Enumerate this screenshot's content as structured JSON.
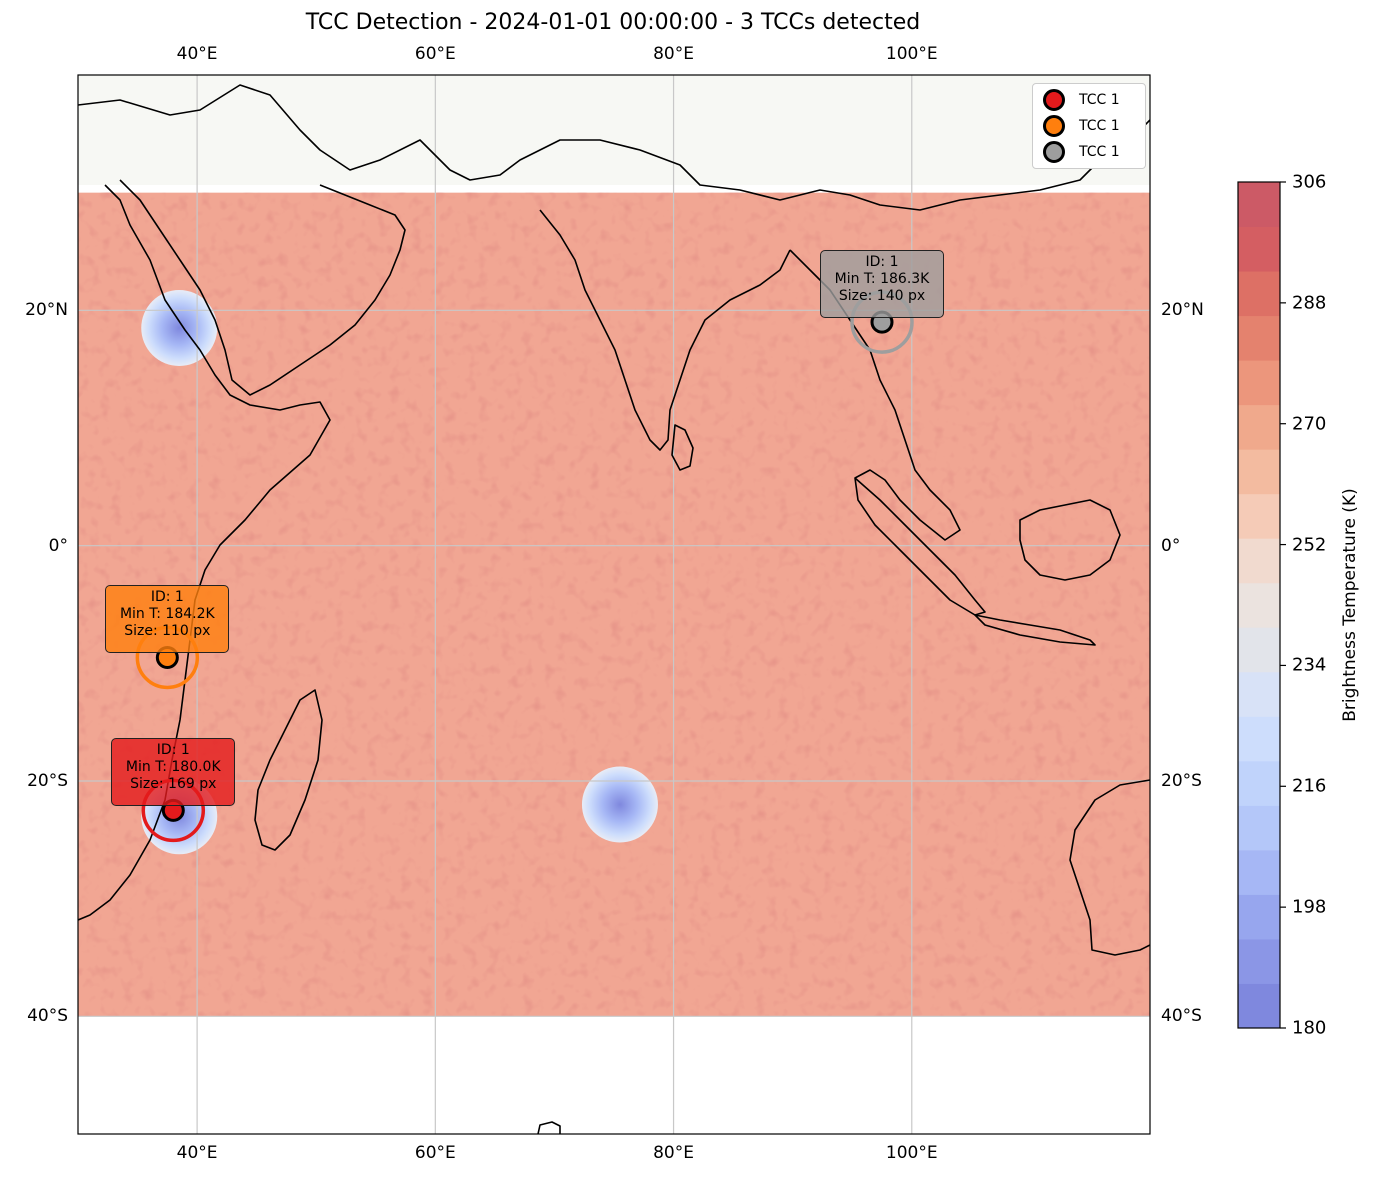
{
  "title": "TCC Detection - 2024-01-01 00:00:00 - 3 TCCs detected",
  "map": {
    "lon_range": [
      30,
      120
    ],
    "lat_range": [
      -50,
      40
    ],
    "data_lat_range": [
      -40,
      30
    ],
    "lon_ticks": [
      {
        "value": 40,
        "label": "40°E"
      },
      {
        "value": 60,
        "label": "60°E"
      },
      {
        "value": 80,
        "label": "80°E"
      },
      {
        "value": 100,
        "label": "100°E"
      }
    ],
    "lat_ticks": [
      {
        "value": 20,
        "label": "20°N"
      },
      {
        "value": 0,
        "label": "0°"
      },
      {
        "value": -20,
        "label": "20°S"
      },
      {
        "value": -40,
        "label": "40°S"
      }
    ],
    "ocean_color": "#f7f8f4",
    "field_color": "#f1a693"
  },
  "colorbar": {
    "label": "Brightness Temperature (K)",
    "min": 180,
    "max": 306,
    "ticks": [
      "306",
      "288",
      "270",
      "252",
      "234",
      "216",
      "198",
      "180"
    ],
    "colors": [
      "#7f88de",
      "#8b96e6",
      "#97a6ee",
      "#a6b7f5",
      "#b4c7f9",
      "#c0d3fb",
      "#cdddfc",
      "#d8e2f7",
      "#e2e4ea",
      "#ebe3df",
      "#f1dacf",
      "#f5cbb7",
      "#f3bba0",
      "#f0a98c",
      "#ec967c",
      "#e4826e",
      "#dd7065",
      "#d45e62",
      "#cc5a66"
    ]
  },
  "legend": {
    "items": [
      {
        "label": "TCC 1",
        "color": "#e31a1c"
      },
      {
        "label": "TCC 1",
        "color": "#ff7f0e"
      },
      {
        "label": "TCC 1",
        "color": "#9e9e9e"
      }
    ]
  },
  "tccs": [
    {
      "id_text": "ID: 1",
      "min_t_text": "Min T: 180.0K",
      "size_text": "Size: 169 px",
      "lon": 38,
      "lat": -22.5,
      "color": "#e31a1c"
    },
    {
      "id_text": "ID: 1",
      "min_t_text": "Min T: 184.2K",
      "size_text": "Size: 110 px",
      "lon": 37.5,
      "lat": -9.5,
      "color": "#ff7f0e"
    },
    {
      "id_text": "ID: 1",
      "min_t_text": "Min T: 186.3K",
      "size_text": "Size: 140 px",
      "lon": 97.5,
      "lat": 19,
      "color": "#9e9e9e"
    }
  ],
  "cold_blobs": [
    {
      "lon": 38.5,
      "lat": 18.5
    },
    {
      "lon": 38.5,
      "lat": -23
    },
    {
      "lon": 75.5,
      "lat": -22
    }
  ]
}
